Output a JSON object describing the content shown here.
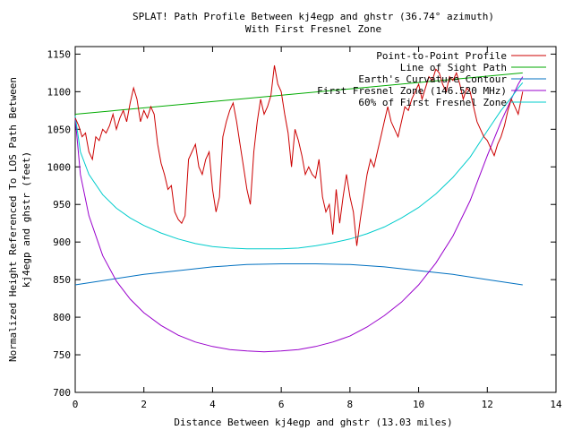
{
  "chart_data": {
    "type": "line",
    "title": "SPLAT! Path Profile Between kj4egp and ghstr (36.74° azimuth)",
    "subtitle": "With First Fresnel Zone",
    "xlabel": "Distance Between kj4egp and ghstr (13.03 miles)",
    "ylabel_line1": "Normalized Height Referenced To LOS Path Between",
    "ylabel_line2": "kj4egp and ghstr (feet)",
    "xlim": [
      0,
      14
    ],
    "ylim": [
      700,
      1160
    ],
    "x_ticks": [
      "0",
      "2",
      "4",
      "6",
      "8",
      "10",
      "12",
      "14"
    ],
    "x_tick_values": [
      0,
      2,
      4,
      6,
      8,
      10,
      12,
      14
    ],
    "y_ticks": [
      "700",
      "750",
      "800",
      "850",
      "900",
      "950",
      "1000",
      "1050",
      "1100",
      "1150"
    ],
    "y_tick_values": [
      700,
      750,
      800,
      850,
      900,
      950,
      1000,
      1050,
      1100,
      1150
    ],
    "legend_position": "top-right",
    "grid": false,
    "series": [
      {
        "name": "Point-to-Point Profile",
        "color": "#cc0000",
        "x": [
          0,
          0.1,
          0.2,
          0.3,
          0.4,
          0.5,
          0.6,
          0.7,
          0.8,
          0.9,
          1.0,
          1.1,
          1.2,
          1.3,
          1.4,
          1.5,
          1.6,
          1.7,
          1.8,
          1.9,
          2.0,
          2.1,
          2.2,
          2.3,
          2.4,
          2.5,
          2.6,
          2.7,
          2.8,
          2.9,
          3.0,
          3.1,
          3.2,
          3.3,
          3.4,
          3.5,
          3.6,
          3.7,
          3.8,
          3.9,
          4.0,
          4.1,
          4.2,
          4.3,
          4.4,
          4.5,
          4.6,
          4.7,
          4.8,
          4.9,
          5.0,
          5.1,
          5.2,
          5.3,
          5.4,
          5.5,
          5.6,
          5.7,
          5.8,
          5.9,
          6.0,
          6.1,
          6.2,
          6.3,
          6.4,
          6.5,
          6.6,
          6.7,
          6.8,
          6.9,
          7.0,
          7.1,
          7.2,
          7.3,
          7.4,
          7.5,
          7.6,
          7.7,
          7.8,
          7.9,
          8.0,
          8.1,
          8.2,
          8.3,
          8.4,
          8.5,
          8.6,
          8.7,
          8.8,
          8.9,
          9.0,
          9.1,
          9.2,
          9.3,
          9.4,
          9.5,
          9.6,
          9.7,
          9.8,
          9.9,
          10.0,
          10.1,
          10.2,
          10.3,
          10.4,
          10.5,
          10.6,
          10.7,
          10.8,
          10.9,
          11.0,
          11.1,
          11.2,
          11.3,
          11.4,
          11.5,
          11.6,
          11.7,
          11.8,
          11.9,
          12.0,
          12.1,
          12.2,
          12.3,
          12.4,
          12.5,
          12.6,
          12.7,
          12.8,
          12.9,
          13.03
        ],
        "y": [
          1065,
          1055,
          1040,
          1045,
          1020,
          1010,
          1040,
          1035,
          1050,
          1045,
          1055,
          1070,
          1050,
          1065,
          1075,
          1060,
          1085,
          1105,
          1090,
          1060,
          1075,
          1065,
          1080,
          1070,
          1030,
          1005,
          990,
          970,
          975,
          940,
          930,
          925,
          935,
          1010,
          1020,
          1030,
          1000,
          990,
          1010,
          1020,
          970,
          940,
          960,
          1040,
          1060,
          1075,
          1085,
          1060,
          1030,
          1000,
          970,
          950,
          1020,
          1060,
          1090,
          1070,
          1080,
          1095,
          1135,
          1110,
          1100,
          1070,
          1045,
          1000,
          1050,
          1035,
          1015,
          990,
          1000,
          990,
          985,
          1010,
          960,
          940,
          950,
          910,
          970,
          925,
          960,
          990,
          960,
          940,
          895,
          930,
          960,
          990,
          1010,
          1000,
          1020,
          1040,
          1060,
          1080,
          1060,
          1050,
          1040,
          1060,
          1080,
          1075,
          1090,
          1100,
          1110,
          1090,
          1105,
          1120,
          1115,
          1130,
          1125,
          1110,
          1100,
          1120,
          1115,
          1125,
          1110,
          1090,
          1105,
          1100,
          1080,
          1060,
          1050,
          1040,
          1035,
          1025,
          1015,
          1030,
          1040,
          1055,
          1075,
          1090,
          1080,
          1070,
          1100
        ]
      },
      {
        "name": "Line of Sight Path",
        "color": "#00aa00",
        "x": [
          0,
          13.03
        ],
        "y": [
          1070,
          1125
        ]
      },
      {
        "name": "Earth's Curvature Contour",
        "color": "#0070c0",
        "x": [
          0,
          1,
          2,
          3,
          4,
          5,
          6,
          7,
          8,
          9,
          10,
          11,
          12,
          13.03
        ],
        "y": [
          843,
          850,
          857,
          862,
          867,
          870,
          871,
          871,
          870,
          867,
          862,
          857,
          850,
          843
        ]
      },
      {
        "name": "First Fresnel Zone (146.520 MHz)",
        "color": "#9900cc",
        "x": [
          0,
          0.15,
          0.4,
          0.8,
          1.2,
          1.6,
          2.0,
          2.5,
          3.0,
          3.5,
          4.0,
          4.5,
          5.0,
          5.5,
          6.0,
          6.5,
          7.0,
          7.5,
          8.0,
          8.5,
          9.0,
          9.5,
          10.0,
          10.5,
          11.0,
          11.5,
          12.0,
          12.4,
          12.7,
          12.9,
          13.03
        ],
        "y": [
          1065,
          990,
          935,
          882,
          848,
          824,
          806,
          789,
          776,
          767,
          761,
          757,
          755,
          754,
          755,
          757,
          761,
          767,
          775,
          787,
          802,
          820,
          843,
          872,
          908,
          955,
          1015,
          1060,
          1090,
          1110,
          1120
        ]
      },
      {
        "name": "60% of First Fresnel Zone",
        "color": "#00cccc",
        "x": [
          0,
          0.15,
          0.4,
          0.8,
          1.2,
          1.6,
          2.0,
          2.5,
          3.0,
          3.5,
          4.0,
          4.5,
          5.0,
          5.5,
          6.0,
          6.5,
          7.0,
          7.5,
          8.0,
          8.5,
          9.0,
          9.5,
          10.0,
          10.5,
          11.0,
          11.5,
          12.0,
          12.4,
          12.7,
          12.9,
          13.03
        ],
        "y": [
          1068,
          1020,
          990,
          963,
          945,
          932,
          922,
          912,
          904,
          898,
          894,
          892,
          891,
          891,
          891,
          892,
          895,
          899,
          904,
          911,
          920,
          932,
          946,
          964,
          986,
          1013,
          1048,
          1075,
          1092,
          1105,
          1112
        ]
      }
    ]
  }
}
